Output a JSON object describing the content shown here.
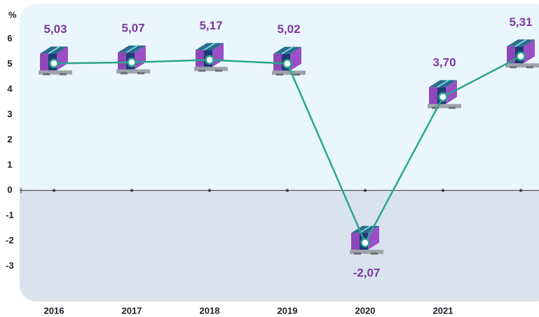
{
  "chart_data": {
    "type": "line",
    "y_axis_label": "%",
    "categories": [
      "2016",
      "2017",
      "2018",
      "2019",
      "2020",
      "2021",
      null
    ],
    "values": [
      5.03,
      5.07,
      5.17,
      5.02,
      -2.07,
      3.7,
      5.31
    ],
    "value_labels": [
      "5,03",
      "5,07",
      "5,17",
      "5,02",
      "-2,07",
      "3,70",
      "5,31"
    ],
    "color": "#2aa58e",
    "ylim": [
      -4.4,
      7.4
    ],
    "yticks": [
      -3,
      -2,
      -1,
      0,
      1,
      2,
      3,
      4,
      5,
      6
    ]
  }
}
